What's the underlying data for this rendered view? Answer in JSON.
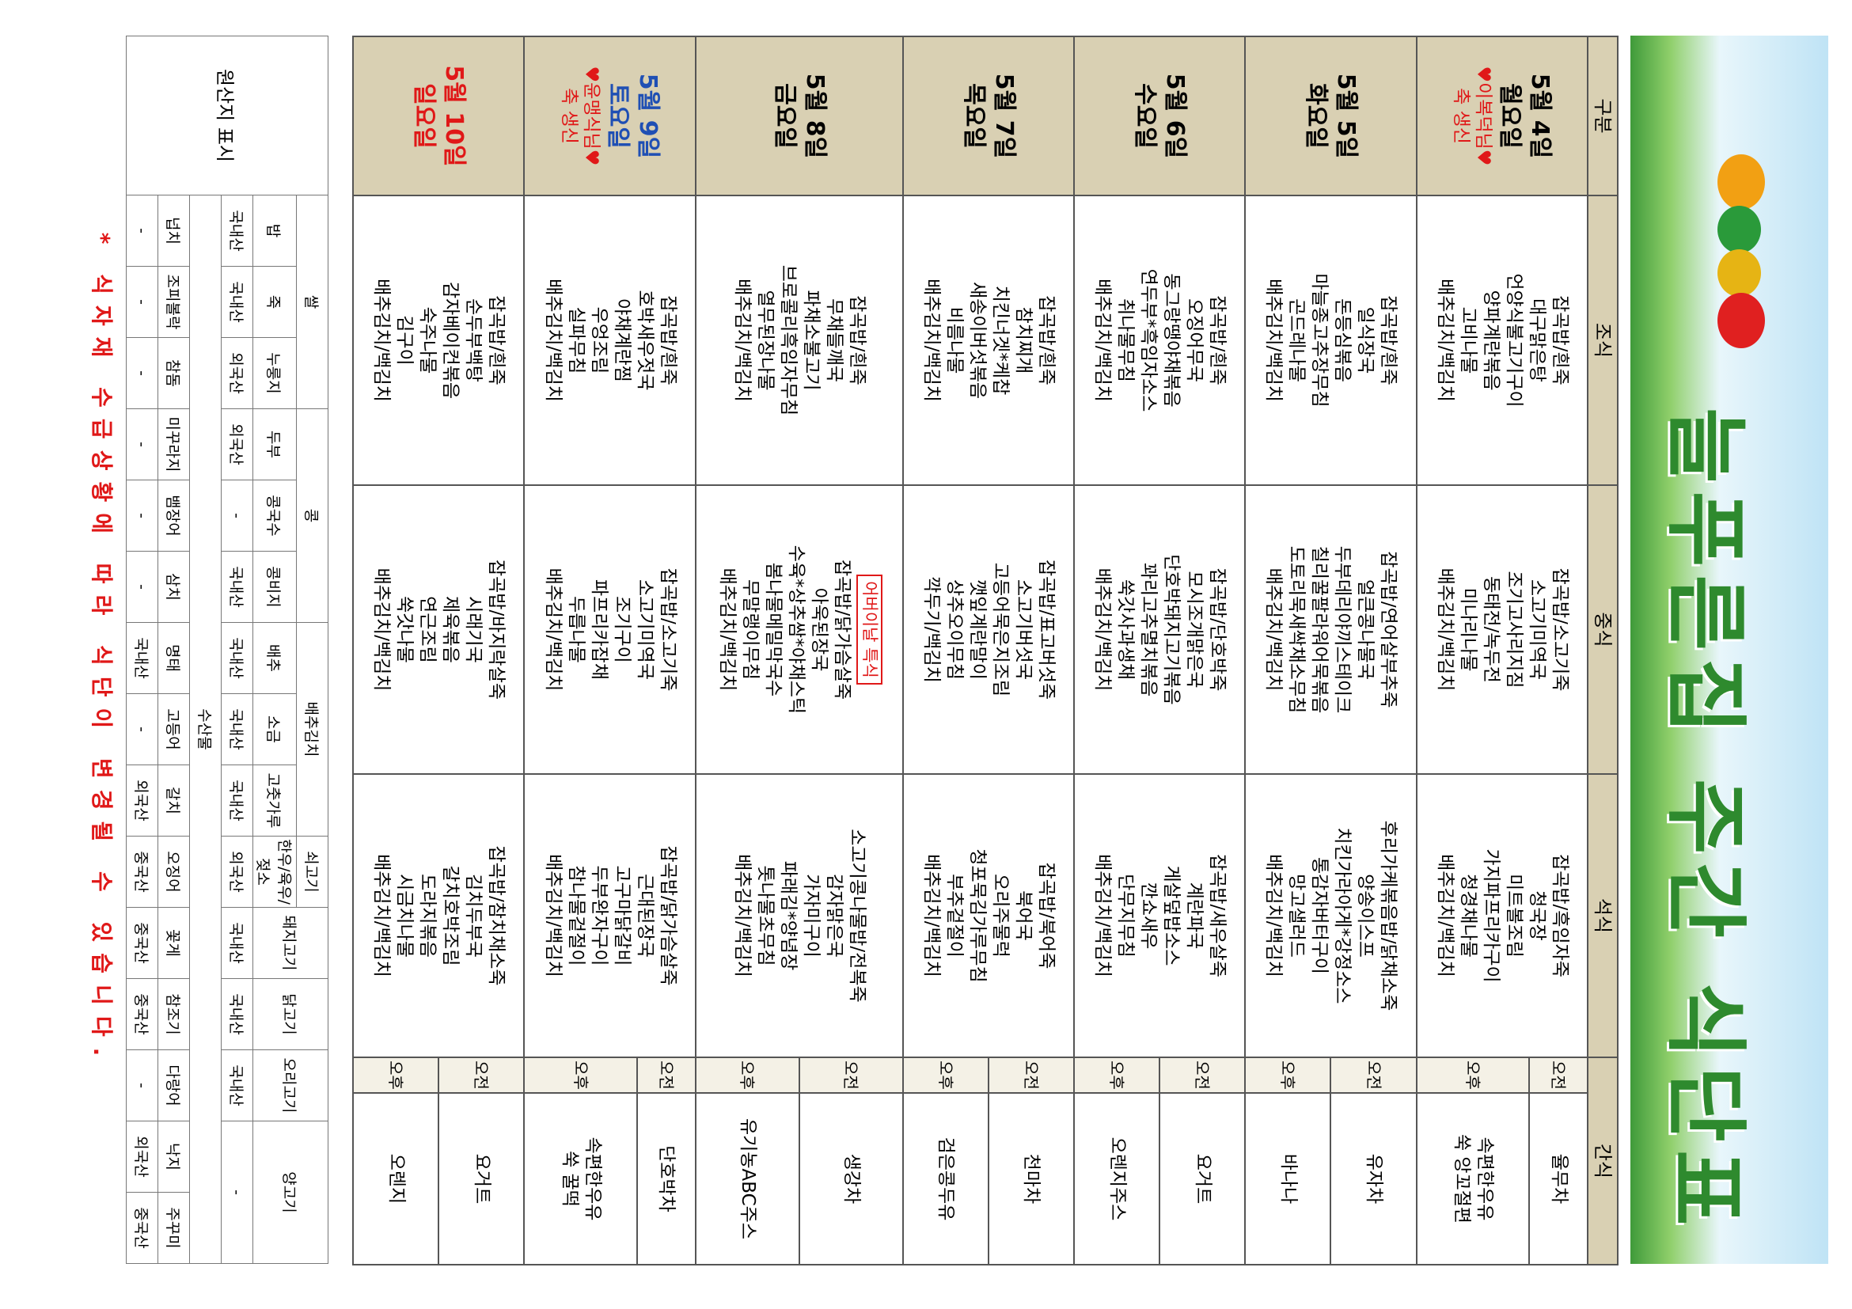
{
  "header": {
    "title": "늘푸른집 주간 식단표"
  },
  "menu": {
    "columns": [
      "구분",
      "조식",
      "중식",
      "석식",
      "간식"
    ],
    "snack_times": [
      "오전",
      "오후"
    ],
    "days": [
      {
        "date": "5월 4일",
        "weekday": "월요일",
        "note": [
          "♥이복덕님♥",
          "축 생신"
        ],
        "breakfast": [
          "잡곡밥/흰죽",
          "대구맑은탕",
          "언양식불고기구이",
          "양파계란볶음",
          "고비나물",
          "배추김치/백김치"
        ],
        "lunch": [
          "잡곡밥/소고기죽",
          "소고기미역국",
          "조기고사리지짐",
          "동태전/녹두전",
          "미나리나물",
          "배추김치/백김치"
        ],
        "dinner": [
          "잡곡밥/흑임자죽",
          "청국장",
          "미트볼조림",
          "가지파프리카구이",
          "청경채나물",
          "배추김치/백김치"
        ],
        "snack_am": [
          "율무차"
        ],
        "snack_pm": [
          "속편한우유",
          "쑥 앙꼬절편"
        ]
      },
      {
        "date": "5월 5일",
        "weekday": "화요일",
        "note": [],
        "breakfast": [
          "잡곡밥/흰죽",
          "일식장국",
          "돈등심볶음",
          "마늘종고추장무침",
          "곤드레나물",
          "배추김치/백김치"
        ],
        "lunch": [
          "잡곡밥/연어살부추죽",
          "얼큰콩나물국",
          "두부데리야끼스테이크",
          "칠리꿀팔라워어묵볶음",
          "도토리묵새싹채소무침",
          "배추김치/백김치"
        ],
        "dinner": [
          "후리가케볶음밥/닭채소죽",
          "양송이스프",
          "치킨가라아게*강정소스",
          "통감자버터구이",
          "망고샐러드",
          "배추김치/백김치"
        ],
        "snack_am": [
          "유자차"
        ],
        "snack_pm": [
          "바나나"
        ]
      },
      {
        "date": "5월 6일",
        "weekday": "수요일",
        "note": [],
        "breakfast": [
          "잡곡밥/흰죽",
          "오징어무국",
          "동그랑땡야채볶음",
          "연두부*흑임자소스",
          "취나물무침",
          "배추김치/백김치"
        ],
        "lunch": [
          "잡곡밥/단호박죽",
          "모시조개맑은국",
          "단호박돼지고기볶음",
          "꽈리고추멸치볶음",
          "쑥갓사과생채",
          "배추김치/백김치"
        ],
        "dinner": [
          "잡곡밥/새우살죽",
          "계란파국",
          "게살덮밥소스",
          "깐쇼새우",
          "단무지무침",
          "배추김치/백김치"
        ],
        "snack_am": [
          "요거트"
        ],
        "snack_pm": [
          "오렌지주스"
        ]
      },
      {
        "date": "5월 7일",
        "weekday": "목요일",
        "note": [],
        "breakfast": [
          "잡곡밥/흰죽",
          "참치찌개",
          "치킨너겟*케찹",
          "새송이버섯볶음",
          "비름나물",
          "배추김치/백김치"
        ],
        "lunch": [
          "잡곡밥/표고버섯죽",
          "소고기버섯국",
          "고등어묵은지조림",
          "깻잎계란말이",
          "상추오이무침",
          "깍두기/백김치"
        ],
        "dinner": [
          "잡곡밥/북어죽",
          "북어국",
          "오리주물럭",
          "청포묵김가루무침",
          "부추겉절이",
          "배추김치/백김치"
        ],
        "snack_am": [
          "천마차"
        ],
        "snack_pm": [
          "검은콩두유"
        ]
      },
      {
        "date": "5월 8일",
        "weekday": "금요일",
        "note": [],
        "breakfast": [
          "잡곡밥/흰죽",
          "무채들깨국",
          "파채소불고기",
          "브로콜리흑임자무침",
          "열무된장나물",
          "배추김치/백김치"
        ],
        "lunch": [
          "잡곡밥/닭가슴살죽",
          "아욱된장국",
          "수육*상추쌈*야채스틱",
          "봄나물메밀막국수",
          "무말랭이무침",
          "배추김치/백김치"
        ],
        "lunch_note": "어버이날 특식",
        "dinner": [
          "소고기콩나물밥/전복죽",
          "감자맑은국",
          "가자미구이",
          "파래김*양념장",
          "톳나물초무침",
          "배추김치/백김치"
        ],
        "snack_am": [
          "생강차"
        ],
        "snack_pm": [
          "유기농ABC주스"
        ]
      },
      {
        "date": "5월 9일",
        "weekday": "토요일",
        "note": [
          "♥윤맹식님♥",
          "축 생신"
        ],
        "breakfast": [
          "잡곡밥/흰죽",
          "호박새우젓국",
          "야채계란찜",
          "우엉조림",
          "실파무침",
          "배추김치/백김치"
        ],
        "lunch": [
          "잡곡밥/소고기죽",
          "소고기미역국",
          "조기구이",
          "파프리카잡채",
          "두릅나물",
          "배추김치/백김치"
        ],
        "dinner": [
          "잡곡밥/닭가슴살죽",
          "근대된장국",
          "고구마닭갈비",
          "두부완자구이",
          "참나물겉절이",
          "배추김치/백김치"
        ],
        "snack_am": [
          "단호박차"
        ],
        "snack_pm": [
          "속편한우유",
          "쑥 꿀떡"
        ]
      },
      {
        "date": "5월 10일",
        "weekday": "일요일",
        "note": [],
        "breakfast": [
          "잡곡밥/흰죽",
          "순두부백탕",
          "감자베이컨볶음",
          "숙주나물",
          "김구이",
          "배추김치/백김치"
        ],
        "lunch": [
          "잡곡밥/바지락살죽",
          "시래기국",
          "제육볶음",
          "연근조림",
          "쑥갓나물",
          "배추김치/백김치"
        ],
        "dinner": [
          "잡곡밥/참치채소죽",
          "김치두부국",
          "갈치호박조림",
          "도라지볶음",
          "시금치나물",
          "배추김치/백김치"
        ],
        "snack_am": [
          "요거트"
        ],
        "snack_pm": [
          "오렌지"
        ]
      }
    ]
  },
  "origin": {
    "title": "원산지 표시",
    "groups": [
      "쌀",
      "콩",
      "배추김치",
      "쇠고기",
      "돼지고기",
      "닭고기",
      "오리고기",
      "양고기"
    ],
    "items": [
      "밥",
      "죽",
      "누룽지",
      "두부",
      "콩국수",
      "콩비지",
      "배추",
      "소금",
      "고춧가루",
      "한우/육우/젖소"
    ],
    "origins": [
      "국내산",
      "국내산",
      "외국산",
      "외국산",
      "-",
      "국내산",
      "국내산",
      "국내산",
      "국내산",
      "외국산",
      "국내산",
      "국내산",
      "국내산",
      "-"
    ],
    "seafood_group": "수산물",
    "seafood_items": [
      "넙치",
      "조피볼락",
      "참돔",
      "미꾸라지",
      "뱀장어",
      "삼치",
      "명태",
      "고등어",
      "갈치",
      "오징어",
      "꽃게",
      "참조기",
      "다랑어",
      "낙지",
      "주꾸미"
    ],
    "seafood_origins": [
      "-",
      "-",
      "-",
      "-",
      "-",
      "-",
      "국내산",
      "-",
      "외국산",
      "중국산",
      "중국산",
      "중국산",
      "-",
      "외국산",
      "중국산"
    ]
  },
  "footer": "* 식자재 수급상황에 따라 식단이 변경될 수 있습니다."
}
